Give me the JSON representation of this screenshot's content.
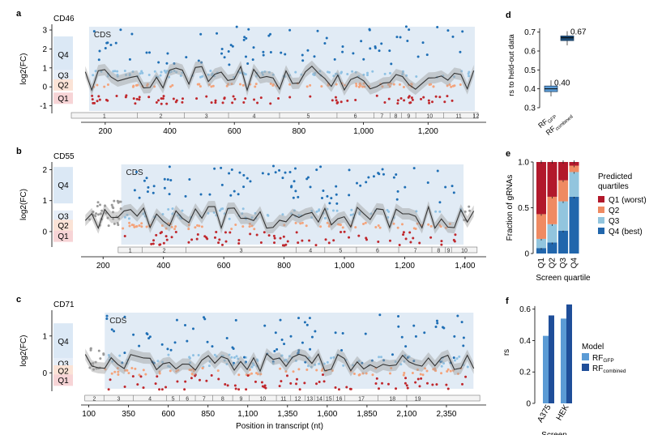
{
  "panels_track": [
    {
      "letter": "a",
      "gene": "CD46",
      "xticks": [
        "200",
        "400",
        "600",
        "800",
        "1,000",
        "1,200"
      ],
      "xtick_values": [
        200,
        400,
        600,
        800,
        1000,
        1200
      ],
      "xrange": [
        100,
        1380
      ],
      "cds_range": [
        150,
        1345
      ],
      "yrange": [
        -1.4,
        3.3
      ],
      "yticks": [
        3,
        2,
        1,
        0,
        -1
      ],
      "ylabel": "log2(FC)",
      "quartiles": [
        {
          "label": "Q4",
          "y": 1.7
        },
        {
          "label": "Q3",
          "y": 0.6
        },
        {
          "label": "Q2",
          "y": 0.1
        },
        {
          "label": "Q1",
          "y": -0.6
        }
      ],
      "exons": [
        "1",
        "2",
        "3",
        "4",
        "5",
        "6",
        "7",
        "8",
        "9",
        "10",
        "11",
        "12"
      ],
      "exon_bounds": [
        95,
        300,
        445,
        582,
        740,
        918,
        1032,
        1082,
        1118,
        1162,
        1248,
        1342,
        1355
      ]
    },
    {
      "letter": "b",
      "gene": "CD55",
      "xticks": [
        "200",
        "400",
        "600",
        "800",
        "1,000",
        "1,200",
        "1,400"
      ],
      "xtick_values": [
        200,
        400,
        600,
        800,
        1000,
        1200,
        1400
      ],
      "xrange": [
        100,
        1470
      ],
      "cds_range": [
        260,
        1395
      ],
      "yrange": [
        -0.5,
        2.25
      ],
      "yticks": [
        2,
        1,
        0
      ],
      "ylabel": "log2(FC)",
      "quartiles": [
        {
          "label": "Q4",
          "y": 1.5
        },
        {
          "label": "Q3",
          "y": 0.5
        },
        {
          "label": "Q2",
          "y": 0.2
        },
        {
          "label": "Q1",
          "y": -0.15
        }
      ],
      "exons": [
        "1",
        "2",
        "3",
        "4",
        "5",
        "6",
        "7",
        "8",
        "9",
        "10"
      ],
      "exon_bounds": [
        250,
        330,
        475,
        840,
        935,
        1040,
        1180,
        1290,
        1335,
        1355,
        1440
      ]
    },
    {
      "letter": "c",
      "gene": "CD71",
      "xticks": [
        "100",
        "350",
        "600",
        "850",
        "1,100",
        "1,350",
        "1,600",
        "1,850",
        "2,100",
        "2,350"
      ],
      "xtick_values": [
        100,
        350,
        600,
        850,
        1100,
        1350,
        1600,
        1850,
        2100,
        2350
      ],
      "xrange": [
        0,
        2600
      ],
      "cds_range": [
        200,
        2520
      ],
      "yrange": [
        -0.5,
        1.7
      ],
      "yticks": [
        1,
        0
      ],
      "ylabel": "log2(FC)",
      "quartiles": [
        {
          "label": "Q4",
          "y": 0.85
        },
        {
          "label": "Q3",
          "y": 0.25
        },
        {
          "label": "Q2",
          "y": 0.05
        },
        {
          "label": "Q1",
          "y": -0.2
        }
      ],
      "exons": [
        "2",
        "3",
        "4",
        "5",
        "6",
        "7",
        "8",
        "9",
        "10",
        "11",
        "12",
        "13",
        "14",
        "15",
        "16",
        "17",
        "18",
        "19"
      ],
      "exon_bounds": [
        75,
        195,
        380,
        590,
        670,
        770,
        880,
        1005,
        1110,
        1280,
        1370,
        1460,
        1520,
        1580,
        1640,
        1710,
        1920,
        2100,
        2240,
        2560
      ]
    }
  ],
  "x_axis_title": "Position in transcript (nt)",
  "cds_label": "CDS",
  "chart_data": [
    {
      "type": "box",
      "letter": "d",
      "ylabel": "rs to held-out data",
      "ylim": [
        0.3,
        0.75
      ],
      "yticks": [
        0.7,
        0.6,
        0.5,
        0.4,
        0.3
      ],
      "boxes": [
        {
          "name": "RFGFP",
          "label": "RF",
          "sub": "GFP",
          "median": 0.4,
          "q1": 0.385,
          "q3": 0.415,
          "lo": 0.36,
          "hi": 0.445,
          "annot": "0.40"
        },
        {
          "name": "RFcombined",
          "label": "RF",
          "sub": "combined",
          "median": 0.67,
          "q1": 0.655,
          "q3": 0.68,
          "lo": 0.63,
          "hi": 0.705,
          "annot": "0.67"
        }
      ]
    },
    {
      "type": "bar",
      "stacked": true,
      "letter": "e",
      "ylabel": "Fraction of gRNAs",
      "xlabel": "Screen quartile",
      "categories": [
        "Q1",
        "Q2",
        "Q3",
        "Q4"
      ],
      "yticks": [
        1.0,
        0.5,
        0
      ],
      "series": [
        {
          "name": "Q1 (worst)",
          "color": "#b2182b",
          "values": [
            0.57,
            0.38,
            0.2,
            0.04
          ]
        },
        {
          "name": "Q2",
          "color": "#ef8a62",
          "values": [
            0.27,
            0.3,
            0.23,
            0.07
          ]
        },
        {
          "name": "Q3",
          "color": "#92c5de",
          "values": [
            0.1,
            0.2,
            0.32,
            0.27
          ]
        },
        {
          "name": "Q4 (best)",
          "color": "#2166ac",
          "values": [
            0.06,
            0.12,
            0.25,
            0.62
          ]
        }
      ],
      "legend_title": "Predicted quartiles"
    },
    {
      "type": "bar",
      "letter": "f",
      "ylabel": "rs",
      "xlabel": "Screen",
      "categories": [
        "A375",
        "HEK"
      ],
      "ylim": [
        0,
        0.65
      ],
      "yticks": [
        0.6,
        0.4,
        0.2,
        0
      ],
      "series": [
        {
          "name": "RFGFP",
          "label": "RF",
          "sub": "GFP",
          "color": "#5b9bd5",
          "values": [
            0.43,
            0.54
          ]
        },
        {
          "name": "RFcombined",
          "label": "RF",
          "sub": "combined",
          "color": "#1f4e99",
          "values": [
            0.56,
            0.63
          ]
        }
      ],
      "legend_title": "Model"
    }
  ]
}
